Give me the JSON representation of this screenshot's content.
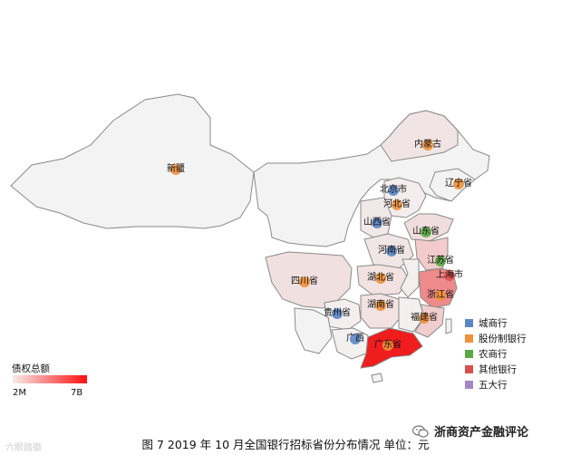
{
  "provinces": [
    {
      "name": "新疆",
      "type": "股份制银行"
    },
    {
      "name": "内蒙古",
      "type": "股份制银行"
    },
    {
      "name": "北京市",
      "type": "城商行"
    },
    {
      "name": "河北省",
      "type": "股份制银行"
    },
    {
      "name": "辽宁省",
      "type": "股份制银行"
    },
    {
      "name": "山西省",
      "type": "城商行"
    },
    {
      "name": "山东省",
      "type": "农商行"
    },
    {
      "name": "河南省",
      "type": "城商行"
    },
    {
      "name": "江苏省",
      "type": "农商行"
    },
    {
      "name": "上海市",
      "type": "其他银行"
    },
    {
      "name": "四川省",
      "type": "股份制银行"
    },
    {
      "name": "湖北省",
      "type": "股份制银行"
    },
    {
      "name": "浙江省",
      "type": "股份制银行"
    },
    {
      "name": "湖南省",
      "type": "股份制银行"
    },
    {
      "name": "贵州省",
      "type": "城商行"
    },
    {
      "name": "福建省",
      "type": "股份制银行"
    },
    {
      "name": "广西",
      "type": "城商行"
    },
    {
      "name": "广东省",
      "type": "股份制银行"
    }
  ],
  "legend": {
    "categories": [
      {
        "label": "城商行",
        "color": "#5b86c5"
      },
      {
        "label": "股份制银行",
        "color": "#f0903a"
      },
      {
        "label": "农商行",
        "color": "#5aa843"
      },
      {
        "label": "其他银行",
        "color": "#d94f4f"
      },
      {
        "label": "五大行",
        "color": "#a686c4"
      }
    ],
    "scale_title": "债权总额",
    "scale_min": "2M",
    "scale_max": "7B"
  },
  "colors": {
    "low": "#f6eaea",
    "high": "#ff1010",
    "unfilled": "#f3f3f3",
    "border": "#8a8a8a"
  },
  "caption": "图 7 2019 年 10 月全国银行招标省份分布情况  单位：元",
  "brand": "浙商资产金融评论",
  "watermark": "六眼踏徽"
}
